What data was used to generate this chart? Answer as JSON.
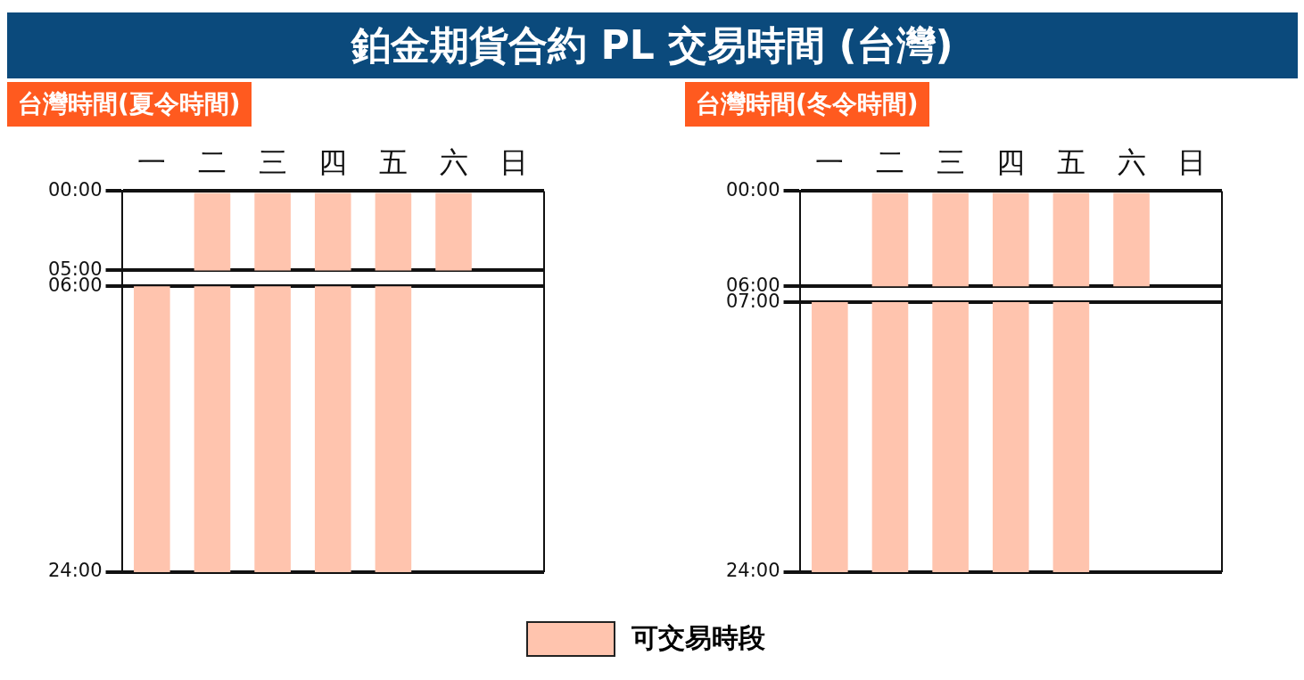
{
  "chart_data": [
    {
      "type": "bar",
      "title": "鉑金期貨合約 PL 交易時間 (台灣)",
      "subtitle": "台灣時間(夏令時間)",
      "categories": [
        "一",
        "二",
        "三",
        "四",
        "五",
        "六",
        "日"
      ],
      "series": [
        {
          "name": "可交易時段",
          "color": "#ffc4ae",
          "values": [
            null,
            5,
            5,
            5,
            5,
            5,
            null
          ],
          "base": [
            null,
            0,
            0,
            0,
            0,
            0,
            null
          ]
        },
        {
          "color": "#ffc4ae",
          "values": [
            18,
            18,
            18,
            18,
            18,
            null,
            null
          ],
          "base": [
            6,
            6,
            6,
            6,
            6,
            null,
            null
          ]
        }
      ],
      "ylim": [
        24,
        0
      ],
      "yticks": [
        {
          "value": 0,
          "label": "00:00"
        },
        {
          "value": 5,
          "label": "05:00"
        },
        {
          "value": 6,
          "label": "06:00"
        },
        {
          "value": 24,
          "label": "24:00"
        }
      ],
      "grid": "y",
      "legend": "bottom"
    },
    {
      "type": "bar",
      "subtitle": "台灣時間(冬令時間)",
      "categories": [
        "一",
        "二",
        "三",
        "四",
        "五",
        "六",
        "日"
      ],
      "series": [
        {
          "color": "#ffc4ae",
          "values": [
            null,
            6,
            6,
            6,
            6,
            6,
            null
          ],
          "base": [
            null,
            0,
            0,
            0,
            0,
            0,
            null
          ]
        },
        {
          "color": "#ffc4ae",
          "values": [
            17,
            17,
            17,
            17,
            17,
            null,
            null
          ],
          "base": [
            7,
            7,
            7,
            7,
            7,
            null,
            null
          ]
        }
      ],
      "ylim": [
        24,
        0
      ],
      "yticks": [
        {
          "value": 0,
          "label": "00:00"
        },
        {
          "value": 6,
          "label": "06:00"
        },
        {
          "value": 7,
          "label": "07:00"
        },
        {
          "value": 24,
          "label": "24:00"
        }
      ],
      "grid": "y"
    }
  ]
}
